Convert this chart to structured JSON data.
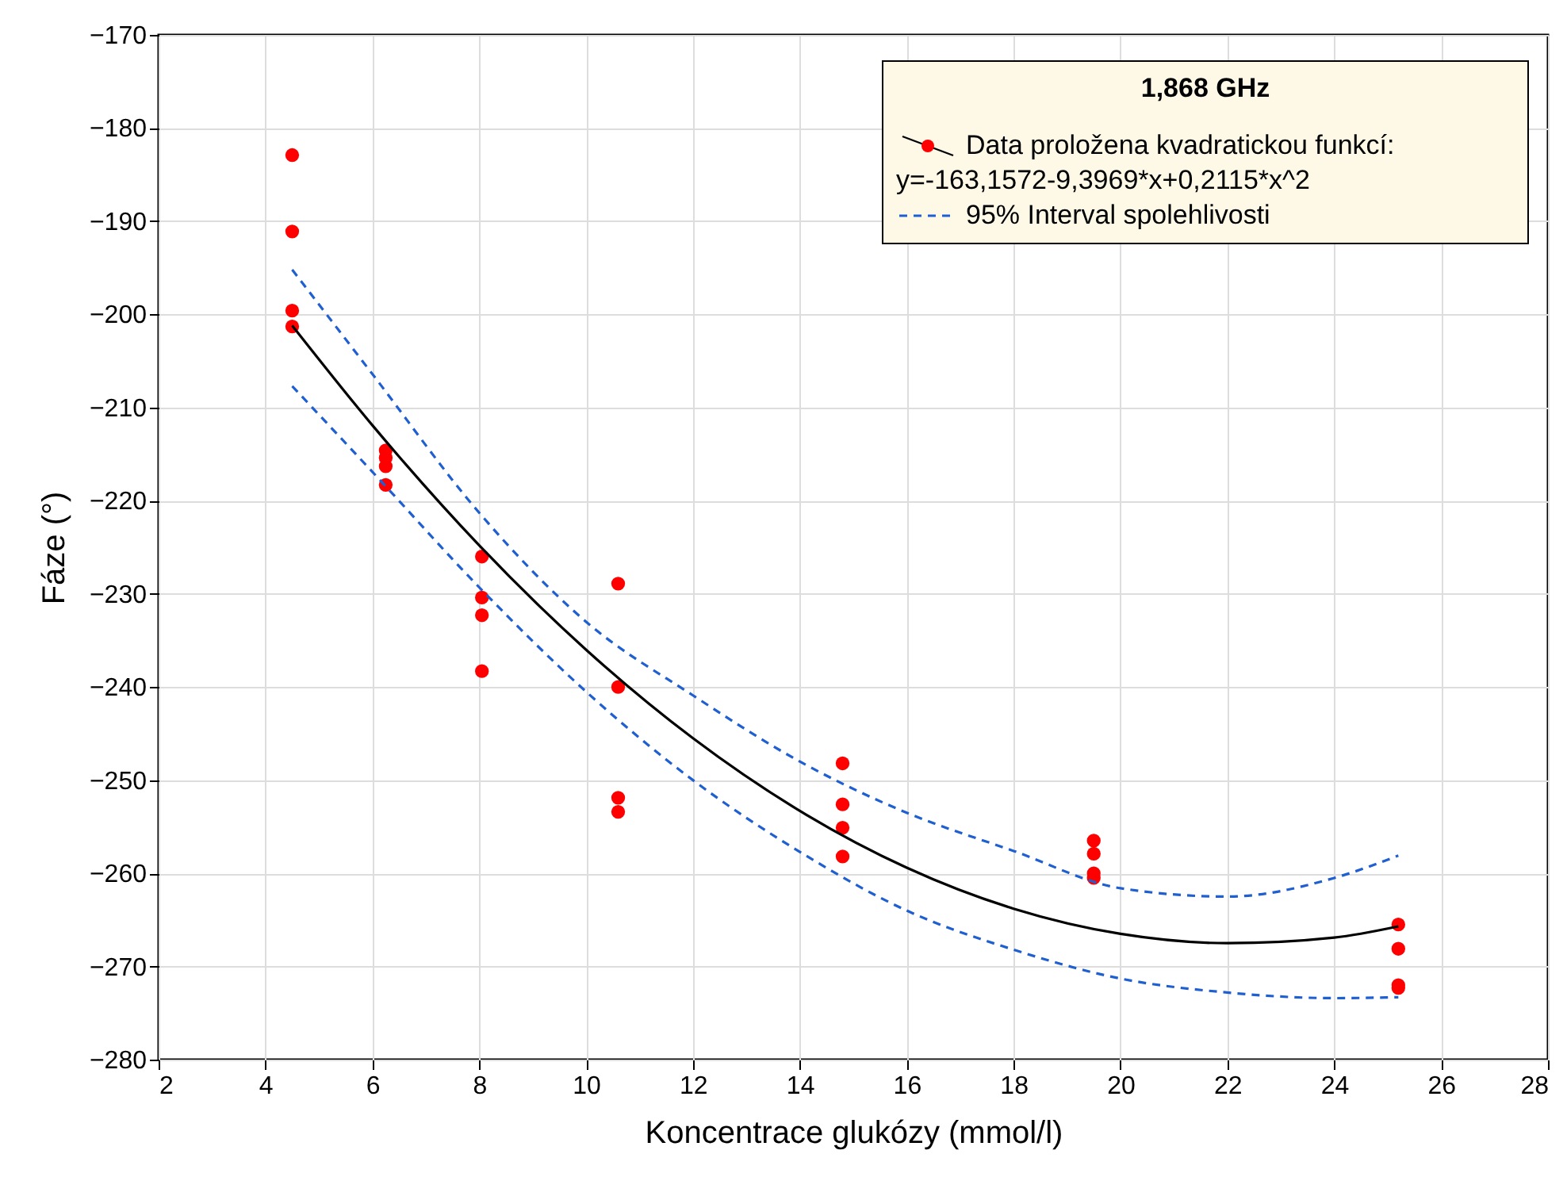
{
  "chart_data": {
    "type": "scatter",
    "xlabel": "Koncentrace glukózy (mmol/l)",
    "ylabel": "Fáze (°)",
    "legend_title": "1,868 GHz",
    "xlim": [
      2,
      28
    ],
    "xticks": [
      2,
      4,
      6,
      8,
      10,
      12,
      14,
      16,
      18,
      20,
      22,
      24,
      26,
      28
    ],
    "ylim": [
      -280,
      -170
    ],
    "yticks": [
      -280,
      -270,
      -260,
      -250,
      -240,
      -230,
      -220,
      -210,
      -200,
      -190,
      -180,
      -170
    ],
    "grid": true,
    "legend": "top right",
    "annotations": [
      "y=-163,1572-9,3969*x+0,2115*x^2"
    ],
    "series": [
      {
        "name": "Data proložena kvadratickou funkcí:",
        "color": "#ff0000",
        "marker": "circle",
        "x": [
          4.5,
          4.5,
          4.5,
          4.5,
          6.25,
          6.25,
          6.25,
          6.25,
          8.05,
          8.05,
          8.05,
          8.05,
          10.6,
          10.6,
          10.6,
          10.6,
          14.8,
          14.8,
          14.8,
          14.8,
          19.5,
          19.5,
          19.5,
          19.5,
          25.2,
          25.2,
          25.2,
          25.2
        ],
        "values": [
          -182.9,
          -191.1,
          -199.6,
          -201.3,
          -214.6,
          -215.4,
          -216.3,
          -218.3,
          -226,
          -230.4,
          -232.3,
          -238.3,
          -228.9,
          -240,
          -251.9,
          -253.4,
          -248.2,
          -252.6,
          -255.1,
          -258.2,
          -256.5,
          -257.9,
          -260,
          -260.5,
          -265.5,
          -268.1,
          -272,
          -272.3
        ]
      },
      {
        "type": "line",
        "color": "#000000",
        "line_style": "solid",
        "x": [
          4.5,
          6,
          8,
          10,
          12,
          14,
          16,
          18,
          20,
          22,
          24,
          25.2
        ],
        "values": [
          -201.2,
          -211.9,
          -224.8,
          -236,
          -245.5,
          -253.3,
          -259.4,
          -263.8,
          -266.5,
          -267.5,
          -266.9,
          -265.7
        ]
      },
      {
        "type": "line",
        "name": "95% Interval spolehlivosti",
        "color": "#1f5fd0",
        "line_style": "dashed",
        "x": [
          4.5,
          6,
          8,
          10,
          12,
          14,
          16,
          18,
          20,
          22,
          24,
          25.2
        ],
        "values": [
          -195.2,
          -206.4,
          -221.3,
          -233,
          -240.9,
          -248,
          -253.5,
          -257.6,
          -261.6,
          -262.5,
          -260.5,
          -258.1
        ]
      },
      {
        "type": "line",
        "color": "#1f5fd0",
        "line_style": "dashed",
        "x": [
          4.5,
          6,
          8,
          10,
          12,
          14,
          16,
          18,
          20,
          22,
          24,
          25.2
        ],
        "values": [
          -207.7,
          -216.9,
          -229.3,
          -240.5,
          -250,
          -257.7,
          -264,
          -268.2,
          -271.3,
          -272.8,
          -273.4,
          -273.3
        ]
      }
    ]
  }
}
